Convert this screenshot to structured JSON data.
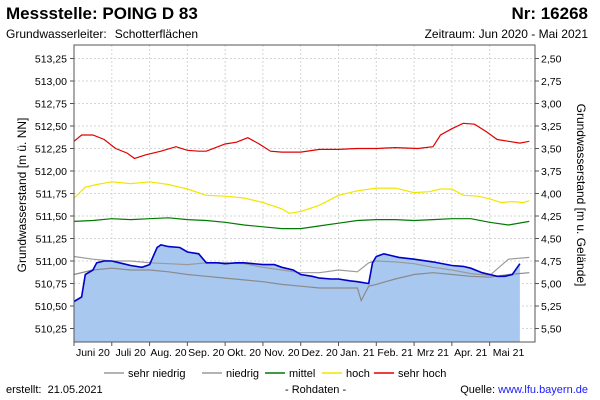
{
  "header": {
    "title": "Messstelle: POING D 83",
    "number": "Nr: 16268",
    "aquifer_label": "Grundwasserleiter:",
    "aquifer_value": "Schotterflächen",
    "period": "Zeitraum: Jun 2020 - Mai 2021"
  },
  "footer": {
    "created_label": "erstellt:",
    "created_date": "21.05.2021",
    "raw_data": "- Rohdaten -",
    "source_label": "Quelle:",
    "source_link": "www.lfu.bayern.de"
  },
  "chart_data": {
    "type": "line",
    "ylabel_left": "Grundwasserstand [m ü. NN]",
    "ylabel_right": "Grundwasserstand [m u. Gelände]",
    "ylim": [
      510.1,
      513.4
    ],
    "yticks_left": [
      "510,25",
      "510,50",
      "510,75",
      "511,00",
      "511,25",
      "511,50",
      "511,75",
      "512,00",
      "512,25",
      "512,50",
      "512,75",
      "513,00",
      "513,25"
    ],
    "yticks_left_values": [
      510.25,
      510.5,
      510.75,
      511.0,
      511.25,
      511.5,
      511.75,
      512.0,
      512.25,
      512.5,
      512.75,
      513.0,
      513.25
    ],
    "yticks_right": [
      "5,50",
      "5,25",
      "5,00",
      "4,75",
      "4,50",
      "4,25",
      "4,00",
      "3,75",
      "3,50",
      "3,25",
      "3,00",
      "2,75",
      "2,50"
    ],
    "xlim": [
      0,
      12.2
    ],
    "xticks": [
      "Juni 20",
      "Juli 20",
      "Aug. 20",
      "Sep. 20",
      "Okt. 20",
      "Nov. 20",
      "Dez. 20",
      "Jan. 21",
      "Feb. 21",
      "Mrz 21",
      "Apr. 21",
      "Mai 21"
    ],
    "xticks_values": [
      0.5,
      1.5,
      2.5,
      3.5,
      4.5,
      5.5,
      6.5,
      7.5,
      8.5,
      9.5,
      10.5,
      11.5
    ],
    "grid": true,
    "legend": {
      "placement": "bottom",
      "items": [
        {
          "label": "sehr niedrig",
          "color": "#ffffff"
        },
        {
          "label": "niedrig",
          "color": "#9a9a9a"
        },
        {
          "label": "mittel",
          "color": "#007a00"
        },
        {
          "label": "hoch",
          "color": "#f2e600"
        },
        {
          "label": "sehr hoch",
          "color": "#e00000"
        }
      ]
    },
    "colors": {
      "measured_line": "#0000c8",
      "measured_fill": "#a9c8f0"
    },
    "series": [
      {
        "name": "sehr hoch",
        "color": "#e00000",
        "x": [
          0,
          0.2,
          0.5,
          0.8,
          1.1,
          1.4,
          1.6,
          1.9,
          2.3,
          2.7,
          3.0,
          3.3,
          3.5,
          4.0,
          4.3,
          4.6,
          4.9,
          5.2,
          5.5,
          6.0,
          6.5,
          7.0,
          7.5,
          8.0,
          8.5,
          9.1,
          9.5,
          9.7,
          10.0,
          10.3,
          10.6,
          10.9,
          11.2,
          11.5,
          11.8,
          12.05
        ],
        "y": [
          512.33,
          512.4,
          512.4,
          512.35,
          512.25,
          512.2,
          512.14,
          512.18,
          512.22,
          512.27,
          512.23,
          512.22,
          512.22,
          512.3,
          512.32,
          512.37,
          512.3,
          512.22,
          512.21,
          512.21,
          512.24,
          512.24,
          512.25,
          512.25,
          512.26,
          512.25,
          512.27,
          512.4,
          512.47,
          512.53,
          512.52,
          512.44,
          512.35,
          512.33,
          512.31,
          512.33
        ]
      },
      {
        "name": "hoch",
        "color": "#f2e600",
        "x": [
          0,
          0.3,
          0.6,
          1.0,
          1.5,
          2.0,
          2.5,
          3.0,
          3.5,
          4.0,
          4.5,
          5.0,
          5.5,
          5.7,
          6.0,
          6.5,
          7.0,
          7.5,
          8.0,
          8.5,
          9.0,
          9.4,
          9.7,
          10.0,
          10.3,
          10.7,
          11.0,
          11.3,
          11.6,
          11.9,
          12.05
        ],
        "y": [
          511.7,
          511.82,
          511.85,
          511.88,
          511.86,
          511.88,
          511.85,
          511.8,
          511.73,
          511.72,
          511.7,
          511.65,
          511.58,
          511.53,
          511.55,
          511.62,
          511.73,
          511.78,
          511.81,
          511.81,
          511.76,
          511.77,
          511.8,
          511.8,
          511.73,
          511.72,
          511.69,
          511.65,
          511.66,
          511.65,
          511.67
        ]
      },
      {
        "name": "mittel",
        "color": "#007a00",
        "x": [
          0,
          0.5,
          1.0,
          1.5,
          2.0,
          2.5,
          3.0,
          3.5,
          4.0,
          4.5,
          5.0,
          5.5,
          6.0,
          6.5,
          7.0,
          7.5,
          8.0,
          8.5,
          9.0,
          9.5,
          10.0,
          10.5,
          11.0,
          11.5,
          12.05
        ],
        "y": [
          511.44,
          511.45,
          511.47,
          511.46,
          511.47,
          511.48,
          511.46,
          511.45,
          511.43,
          511.4,
          511.38,
          511.36,
          511.36,
          511.39,
          511.42,
          511.45,
          511.46,
          511.46,
          511.45,
          511.46,
          511.47,
          511.47,
          511.43,
          511.4,
          511.44
        ]
      },
      {
        "name": "niedrig",
        "color": "#9a9a9a",
        "x": [
          0,
          0.5,
          1.0,
          1.5,
          2.0,
          2.5,
          3.0,
          3.5,
          4.0,
          4.5,
          5.0,
          5.5,
          6.0,
          6.5,
          7.0,
          7.5,
          7.8,
          8.0,
          8.5,
          9.0,
          9.5,
          10.0,
          10.5,
          11.0,
          11.5,
          12.05
        ],
        "y": [
          511.05,
          511.02,
          511.0,
          511.0,
          510.98,
          510.97,
          510.96,
          510.98,
          510.98,
          510.97,
          510.93,
          510.9,
          510.87,
          510.87,
          510.9,
          510.88,
          510.98,
          511.0,
          510.99,
          510.97,
          510.93,
          510.9,
          510.86,
          510.84,
          511.02,
          511.04
        ]
      },
      {
        "name": "sehr niedrig",
        "color": "#8a8a8a",
        "x": [
          0,
          0.5,
          1.0,
          1.5,
          2.0,
          2.5,
          3.0,
          3.5,
          4.0,
          4.5,
          5.0,
          5.5,
          6.0,
          6.5,
          7.0,
          7.5,
          7.6,
          7.8,
          8.0,
          8.5,
          9.0,
          9.5,
          10.0,
          10.5,
          11.0,
          11.5,
          12.05
        ],
        "y": [
          510.85,
          510.9,
          510.92,
          510.9,
          510.9,
          510.88,
          510.85,
          510.83,
          510.81,
          510.79,
          510.77,
          510.74,
          510.72,
          510.7,
          510.7,
          510.7,
          510.56,
          510.72,
          510.74,
          510.8,
          510.85,
          510.87,
          510.85,
          510.83,
          510.82,
          510.85,
          510.87
        ]
      },
      {
        "name": "Messwerte",
        "color": "#0000c8",
        "filled": true,
        "x": [
          0,
          0.2,
          0.3,
          0.5,
          0.6,
          0.8,
          1.0,
          1.3,
          1.5,
          1.8,
          2.0,
          2.2,
          2.3,
          2.5,
          2.8,
          3.0,
          3.3,
          3.5,
          3.8,
          4.0,
          4.3,
          4.5,
          5.0,
          5.3,
          5.5,
          5.8,
          6.0,
          6.3,
          6.5,
          6.8,
          7.0,
          7.3,
          7.5,
          7.8,
          7.9,
          8.0,
          8.2,
          8.4,
          8.6,
          9.0,
          9.5,
          10.0,
          10.3,
          10.5,
          10.8,
          11.0,
          11.2,
          11.4,
          11.6,
          11.8
        ],
        "y": [
          510.55,
          510.6,
          510.85,
          510.9,
          510.98,
          511.0,
          511.0,
          510.97,
          510.95,
          510.93,
          510.96,
          511.15,
          511.18,
          511.16,
          511.15,
          511.1,
          511.08,
          510.98,
          510.98,
          510.97,
          510.98,
          510.98,
          510.96,
          510.96,
          510.93,
          510.9,
          510.85,
          510.83,
          510.81,
          510.8,
          510.8,
          510.78,
          510.77,
          510.75,
          510.98,
          511.05,
          511.08,
          511.06,
          511.04,
          511.02,
          510.99,
          510.95,
          510.94,
          510.92,
          510.87,
          510.85,
          510.83,
          510.83,
          510.85,
          510.97
        ]
      }
    ]
  }
}
